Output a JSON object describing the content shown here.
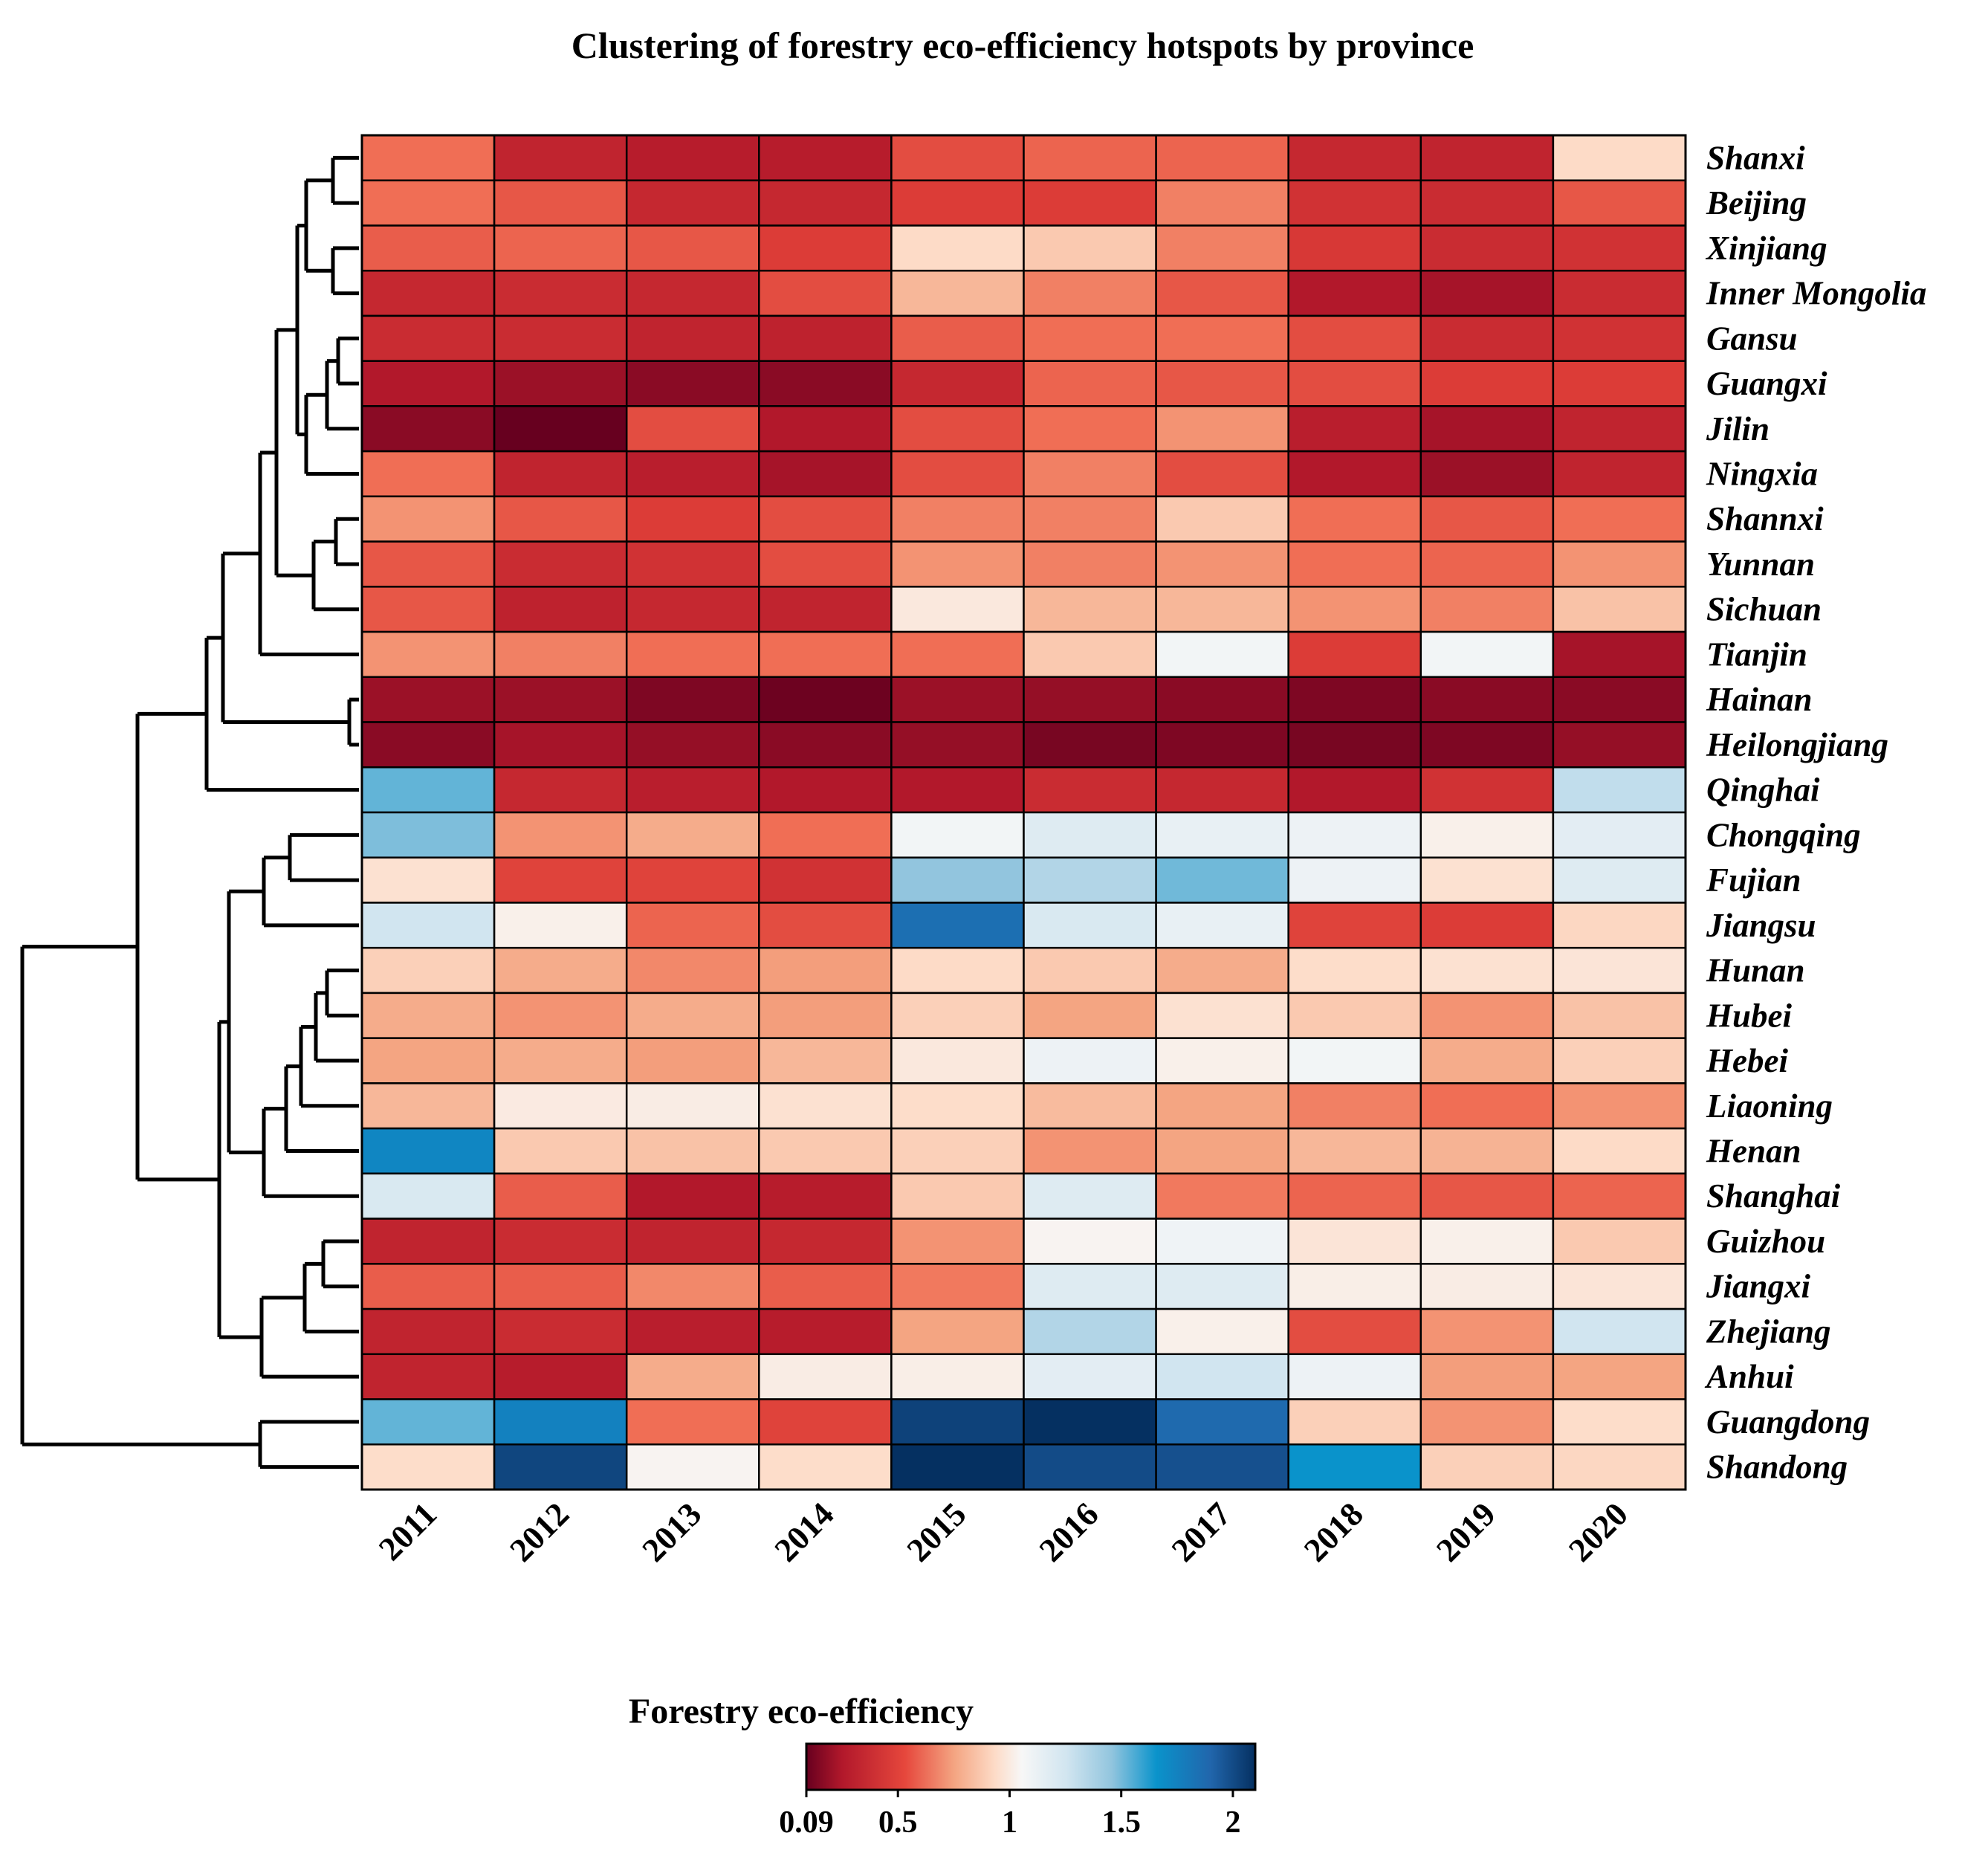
{
  "chart_data": {
    "type": "heatmap",
    "title": "Clustering of forestry eco-efficiency hotspots by province",
    "years": [
      "2011",
      "2012",
      "2013",
      "2014",
      "2015",
      "2016",
      "2017",
      "2018",
      "2019",
      "2020"
    ],
    "provinces": [
      "Shanxi",
      "Beijing",
      "Xinjiang",
      "Inner Mongolia",
      "Gansu",
      "Guangxi",
      "Jilin",
      "Ningxia",
      "Shannxi",
      "Yunnan",
      "Sichuan",
      "Tianjin",
      "Hainan",
      "Heilongjiang",
      "Qinghai",
      "Chongqing",
      "Fujian",
      "Jiangsu",
      "Hunan",
      "Hubei",
      "Hebei",
      "Liaoning",
      "Henan",
      "Shanghai",
      "Guizhou",
      "Jiangxi",
      "Zhejiang",
      "Anhui",
      "Guangdong",
      "Shandong"
    ],
    "values": [
      [
        0.55,
        0.28,
        0.24,
        0.24,
        0.45,
        0.52,
        0.52,
        0.3,
        0.28,
        0.85
      ],
      [
        0.55,
        0.48,
        0.3,
        0.3,
        0.4,
        0.4,
        0.6,
        0.35,
        0.32,
        0.48
      ],
      [
        0.5,
        0.52,
        0.48,
        0.4,
        0.85,
        0.8,
        0.6,
        0.38,
        0.32,
        0.35
      ],
      [
        0.3,
        0.32,
        0.3,
        0.45,
        0.75,
        0.6,
        0.48,
        0.22,
        0.2,
        0.32
      ],
      [
        0.32,
        0.32,
        0.28,
        0.27,
        0.5,
        0.55,
        0.55,
        0.45,
        0.32,
        0.35
      ],
      [
        0.22,
        0.18,
        0.15,
        0.15,
        0.3,
        0.52,
        0.48,
        0.45,
        0.4,
        0.4
      ],
      [
        0.15,
        0.09,
        0.45,
        0.22,
        0.45,
        0.55,
        0.65,
        0.25,
        0.2,
        0.28
      ],
      [
        0.55,
        0.28,
        0.25,
        0.2,
        0.45,
        0.6,
        0.45,
        0.22,
        0.18,
        0.28
      ],
      [
        0.65,
        0.48,
        0.4,
        0.45,
        0.6,
        0.6,
        0.8,
        0.55,
        0.48,
        0.55
      ],
      [
        0.48,
        0.32,
        0.35,
        0.45,
        0.65,
        0.6,
        0.65,
        0.55,
        0.52,
        0.65
      ],
      [
        0.48,
        0.27,
        0.3,
        0.28,
        0.92,
        0.75,
        0.75,
        0.65,
        0.6,
        0.78
      ],
      [
        0.65,
        0.6,
        0.55,
        0.55,
        0.55,
        0.8,
        1.02,
        0.4,
        1.02,
        0.2
      ],
      [
        0.18,
        0.18,
        0.13,
        0.1,
        0.18,
        0.17,
        0.15,
        0.13,
        0.15,
        0.15
      ],
      [
        0.15,
        0.2,
        0.17,
        0.15,
        0.17,
        0.12,
        0.13,
        0.12,
        0.13,
        0.17
      ],
      [
        1.42,
        0.3,
        0.25,
        0.22,
        0.22,
        0.32,
        0.3,
        0.22,
        0.35,
        1.2
      ],
      [
        1.38,
        0.65,
        0.72,
        0.55,
        1.02,
        1.1,
        1.06,
        1.04,
        0.96,
        1.08
      ],
      [
        0.88,
        0.42,
        0.42,
        0.35,
        1.35,
        1.25,
        1.4,
        1.04,
        0.88,
        1.1
      ],
      [
        1.15,
        0.96,
        0.52,
        0.45,
        1.75,
        1.12,
        1.06,
        0.42,
        0.4,
        0.84
      ],
      [
        0.82,
        0.72,
        0.62,
        0.68,
        0.85,
        0.8,
        0.72,
        0.86,
        0.88,
        0.9
      ],
      [
        0.72,
        0.65,
        0.72,
        0.68,
        0.82,
        0.7,
        0.88,
        0.8,
        0.65,
        0.78
      ],
      [
        0.7,
        0.72,
        0.68,
        0.75,
        0.92,
        1.04,
        0.96,
        1.02,
        0.72,
        0.82
      ],
      [
        0.75,
        0.93,
        0.94,
        0.88,
        0.86,
        0.76,
        0.7,
        0.6,
        0.55,
        0.65
      ],
      [
        1.62,
        0.8,
        0.78,
        0.8,
        0.82,
        0.65,
        0.7,
        0.75,
        0.74,
        0.85
      ],
      [
        1.12,
        0.5,
        0.22,
        0.24,
        0.8,
        1.1,
        0.58,
        0.52,
        0.48,
        0.52
      ],
      [
        0.28,
        0.32,
        0.28,
        0.3,
        0.65,
        0.98,
        1.03,
        0.9,
        0.96,
        0.8
      ],
      [
        0.5,
        0.5,
        0.62,
        0.5,
        0.58,
        1.1,
        1.1,
        0.95,
        0.94,
        0.9
      ],
      [
        0.28,
        0.32,
        0.25,
        0.24,
        0.7,
        1.25,
        0.96,
        0.45,
        0.65,
        1.15
      ],
      [
        0.28,
        0.24,
        0.72,
        0.94,
        0.95,
        1.08,
        1.15,
        1.04,
        0.68,
        0.7
      ],
      [
        1.42,
        1.65,
        0.55,
        0.42,
        2.0,
        2.1,
        1.78,
        0.82,
        0.65,
        0.86
      ],
      [
        0.86,
        1.98,
        0.98,
        0.86,
        2.1,
        1.95,
        1.92,
        1.55,
        0.82,
        0.84
      ]
    ],
    "dendrogram_labels": [],
    "colorbar": {
      "label": "Forestry eco-efficiency",
      "min": 0.09,
      "max": 2.1,
      "ticks": [
        0.09,
        0.5,
        1,
        1.5,
        2
      ],
      "tick_labels": [
        "0.09",
        "0.5",
        "1",
        "1.5",
        "2"
      ],
      "colors": [
        "#67001f",
        "#b2182b",
        "#d6604d",
        "#f4a582",
        "#fddbc7",
        "#f7f7f7",
        "#d1e5f0",
        "#92c5de",
        "#0a93cb",
        "#2166ac",
        "#053061"
      ]
    }
  }
}
